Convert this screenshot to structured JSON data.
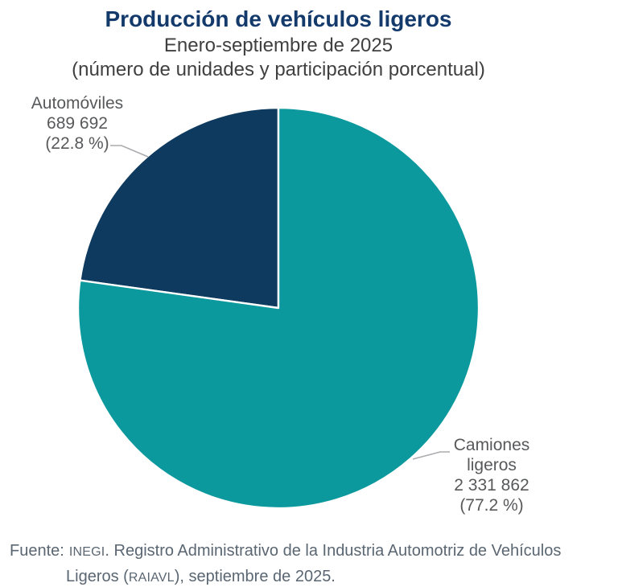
{
  "header": {
    "title": "Producción de vehículos ligeros",
    "subtitle": "Enero-septiembre de 2025",
    "note": "(número de unidades y participación porcentual)"
  },
  "chart_data": {
    "type": "pie",
    "title": "Producción de vehículos ligeros",
    "subtitle": "Enero-septiembre de 2025",
    "note": "(número de unidades y participación porcentual)",
    "categories": [
      "Automóviles",
      "Camiones ligeros"
    ],
    "values": [
      689692,
      2331862
    ],
    "percentages": [
      22.8,
      77.2
    ],
    "colors": [
      "#0D3A5E",
      "#0B999E"
    ],
    "slice_border_color": "#FFFFFF",
    "start_angle": "top",
    "direction": "counterclockwise",
    "legend_position": "none",
    "source": "Fuente: INEGI. Registro Administrativo de la Industria Automotriz de Vehículos Ligeros (RAIAVL), septiembre de 2025."
  },
  "slice_labels": [
    {
      "lines": [
        "Automóviles"
      ],
      "value": "689 692",
      "pct": "(22.8 %)"
    },
    {
      "lines": [
        "Camiones",
        "ligeros"
      ],
      "value": "2 331 862",
      "pct": "(77.2 %)"
    }
  ],
  "footer": {
    "prefix": "Fuente:",
    "org": "INEGI",
    "line1_rest": ". Registro Administrativo de la Industria Automotriz de Vehículos",
    "line2_pre": "Ligeros (",
    "acronym": "RAIAVL",
    "line2_rest": "), septiembre de 2025."
  },
  "ui_colors": {
    "title_text": "#133A6B",
    "body_text": "#404040",
    "label_text": "#58595B",
    "footer_text": "#5A6672",
    "leader_line": "#A9ABAE"
  }
}
